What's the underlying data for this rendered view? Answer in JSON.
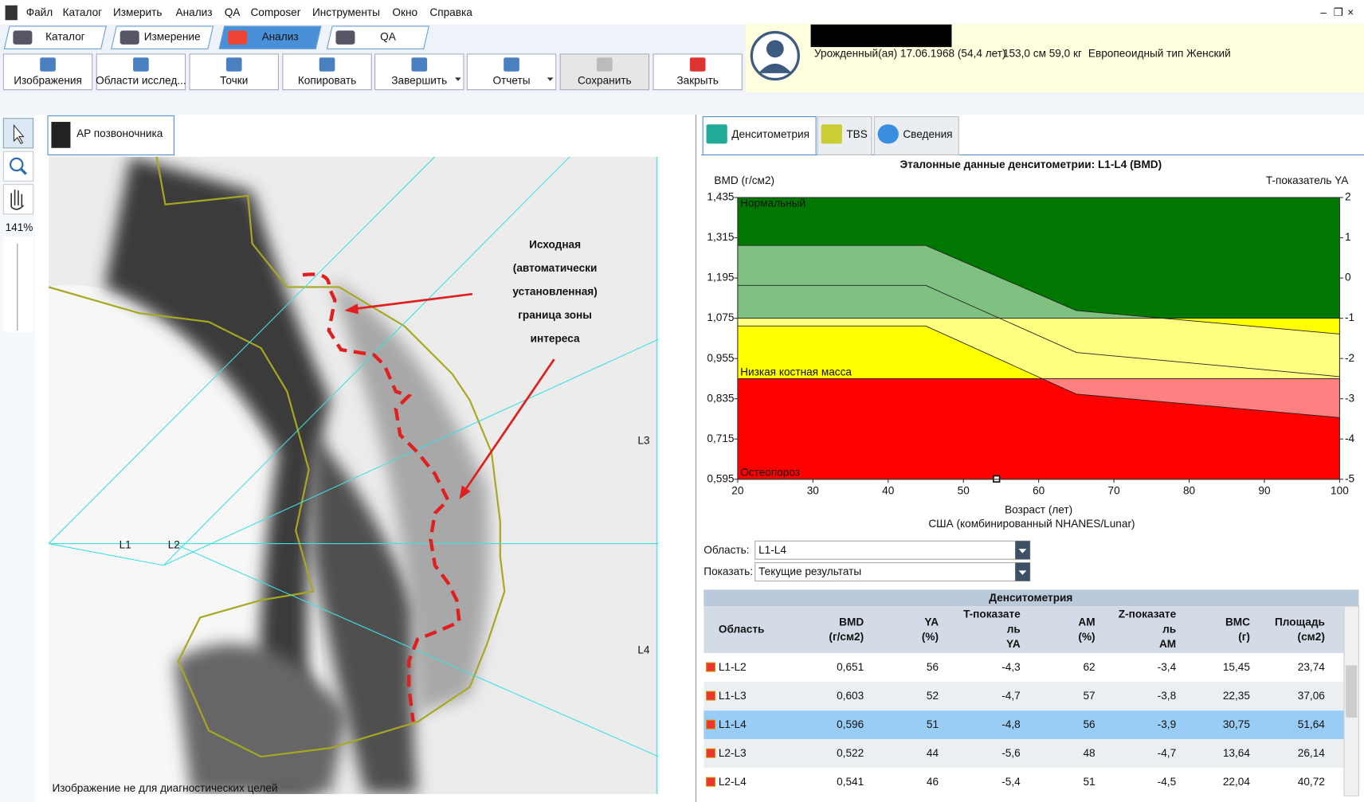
{
  "menu": [
    "Файл",
    "Каталог",
    "Измерить",
    "Анализ",
    "QA",
    "Composer",
    "Инструменты",
    "Окно",
    "Справка"
  ],
  "mode_tabs": [
    "Каталог",
    "Измерение",
    "Анализ",
    "QA"
  ],
  "toolbar": [
    "Изображения",
    "Области исслед...",
    "Точки",
    "Копировать",
    "Завершить",
    "Отчеты",
    "Сохранить",
    "Закрыть"
  ],
  "patient": {
    "birth": "Урожденный(ая) 17.06.1968  (54,4 лет)",
    "body": "153,0 см  59,0 кг",
    "type": "Европеоидный тип Женский"
  },
  "zoom": "141%",
  "image": {
    "tab": "AP позвоночника",
    "labels": [
      "L1",
      "L2",
      "L3",
      "L4"
    ],
    "footer": "Изображение не для диагностических целей",
    "annotation": [
      "Исходная",
      "(автоматически",
      "установленная)",
      "граница зоны",
      "интереса"
    ]
  },
  "result_tabs": [
    "Денситометрия",
    "TBS",
    "Сведения"
  ],
  "chart": {
    "type": "reference",
    "title": "Эталонные данные денситометрии: L1-L4 (BMD)",
    "y_label": "BMD (г/см2)",
    "y2_label": "T-показатель YA",
    "x_label": "Возраст (лет)",
    "source": "США (комбинированный NHANES/Lunar)",
    "xlim": [
      20,
      100
    ],
    "xticks": [
      20,
      30,
      40,
      50,
      60,
      70,
      80,
      90,
      100
    ],
    "ylim": [
      0.595,
      1.435
    ],
    "yticks": [
      {
        "value": 1.435,
        "label": "1,435"
      },
      {
        "value": 1.315,
        "label": "1,315"
      },
      {
        "value": 1.195,
        "label": "1,195"
      },
      {
        "value": 1.075,
        "label": "1,075"
      },
      {
        "value": 0.955,
        "label": "0,955"
      },
      {
        "value": 0.835,
        "label": "0,835"
      },
      {
        "value": 0.715,
        "label": "0,715"
      },
      {
        "value": 0.595,
        "label": "0,595"
      }
    ],
    "y2lim": [
      -5,
      2
    ],
    "y2ticks": [
      2,
      1,
      0,
      -1,
      -2,
      -3,
      -4,
      -5
    ],
    "zones": [
      {
        "name": "Нормальный",
        "from": 1.075,
        "to": 1.435,
        "color": "#007800",
        "band_color": "#80c080"
      },
      {
        "name": "Низкая костная масса",
        "from": 0.895,
        "to": 1.075,
        "color": "#ffff00",
        "band_color": "#ffff80"
      },
      {
        "name": "Остеопороз",
        "from": 0.595,
        "to": 0.895,
        "color": "#ff0000",
        "band_color": "#ff8080"
      }
    ],
    "reference": {
      "x": [
        20,
        45,
        65,
        100
      ],
      "upper": [
        1.292,
        1.292,
        1.098,
        1.028
      ],
      "mean": [
        1.173,
        1.173,
        0.973,
        0.901
      ],
      "lower": [
        1.052,
        1.052,
        0.849,
        0.779
      ]
    },
    "patient_point": {
      "x": 54.4,
      "y": 0.596
    }
  },
  "controls": {
    "region_label": "Область:",
    "region": "L1-L4",
    "show_label": "Показать:",
    "show": "Текущие результаты"
  },
  "table": {
    "title": "Денситометрия",
    "headers": [
      [
        "Область"
      ],
      [
        "BMD",
        "(г/см2)"
      ],
      [
        "YA",
        "(%)"
      ],
      [
        "T-показате",
        "ль",
        "YA"
      ],
      [
        "AM",
        "(%)"
      ],
      [
        "Z-показате",
        "ль",
        "AM"
      ],
      [
        "BMC",
        "(г)"
      ],
      [
        "Площадь",
        "(см2)"
      ]
    ],
    "rows": [
      [
        "L1-L2",
        "0,651",
        "56",
        "-4,3",
        "62",
        "-3,4",
        "15,45",
        "23,74"
      ],
      [
        "L1-L3",
        "0,603",
        "52",
        "-4,7",
        "57",
        "-3,8",
        "22,35",
        "37,06"
      ],
      [
        "L1-L4",
        "0,596",
        "51",
        "-4,8",
        "56",
        "-3,9",
        "30,75",
        "51,64"
      ],
      [
        "L2-L3",
        "0,522",
        "44",
        "-5,6",
        "48",
        "-4,7",
        "13,64",
        "26,14"
      ],
      [
        "L2-L4",
        "0,541",
        "46",
        "-5,4",
        "51",
        "-4,5",
        "22,04",
        "40,72"
      ]
    ],
    "selected_row": 2
  }
}
